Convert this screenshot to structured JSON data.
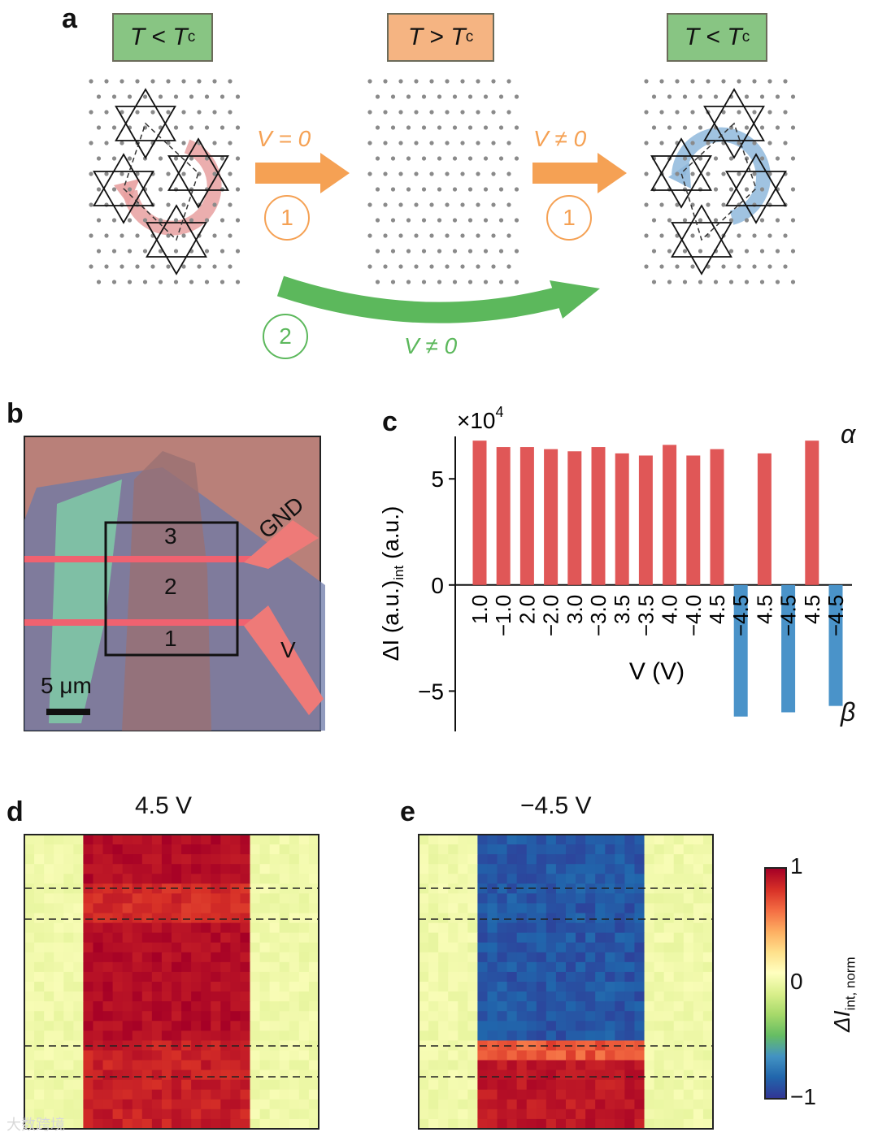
{
  "panel_a": {
    "label": "a",
    "states": [
      {
        "T": "T",
        "op": "<",
        "Tc": "T",
        "sub": "c",
        "color": "#88c583"
      },
      {
        "T": "T",
        "op": ">",
        "Tc": "T",
        "sub": "c",
        "color": "#f5b482"
      },
      {
        "T": "T",
        "op": "<",
        "Tc": "T",
        "sub": "c",
        "color": "#88c583"
      }
    ],
    "arrow1_label": "V = 0",
    "arrow2_label": "V ≠ 0",
    "arrow3_label": "V ≠ 0",
    "step1": "1",
    "step2": "2",
    "colors": {
      "orange": "#f5a154",
      "green": "#5cb85c",
      "pink": "#e8a0a0",
      "blue": "#8fb8dc"
    }
  },
  "panel_b": {
    "label": "b",
    "region_labels": [
      "3",
      "2",
      "1"
    ],
    "gnd": "GND",
    "v": "V",
    "scalebar": "5 μm"
  },
  "panel_c": {
    "label": "c",
    "alpha": "α",
    "beta": "β"
  },
  "panel_d": {
    "label": "d",
    "title": "4.5 V"
  },
  "panel_e": {
    "label": "e",
    "title": "−4.5 V"
  },
  "colorbar": {
    "max": "1",
    "mid": "0",
    "min": "−1",
    "label": "ΔI",
    "label_sub": "int, norm"
  },
  "watermark": "大数跨境",
  "chart_data": {
    "type": "bar",
    "title": "",
    "xlabel": "V (V)",
    "ylabel": "ΔI_int (a.u.)",
    "yscale_label": "×10^4",
    "ylim": [
      -6.9,
      7.0
    ],
    "yticks": [
      -5,
      0,
      5
    ],
    "categories": [
      "1.0",
      "−1.0",
      "2.0",
      "−2.0",
      "3.0",
      "−3.0",
      "3.5",
      "−3.5",
      "4.0",
      "−4.0",
      "4.5",
      "−4.5",
      "4.5",
      "−4.5",
      "4.5",
      "−4.5"
    ],
    "values": [
      6.8,
      6.5,
      6.5,
      6.4,
      6.3,
      6.5,
      6.2,
      6.1,
      6.6,
      6.1,
      6.4,
      -6.2,
      6.2,
      -6.0,
      6.8,
      -5.7
    ],
    "colors": {
      "positive": "#e05757",
      "negative": "#4a93c9"
    }
  }
}
